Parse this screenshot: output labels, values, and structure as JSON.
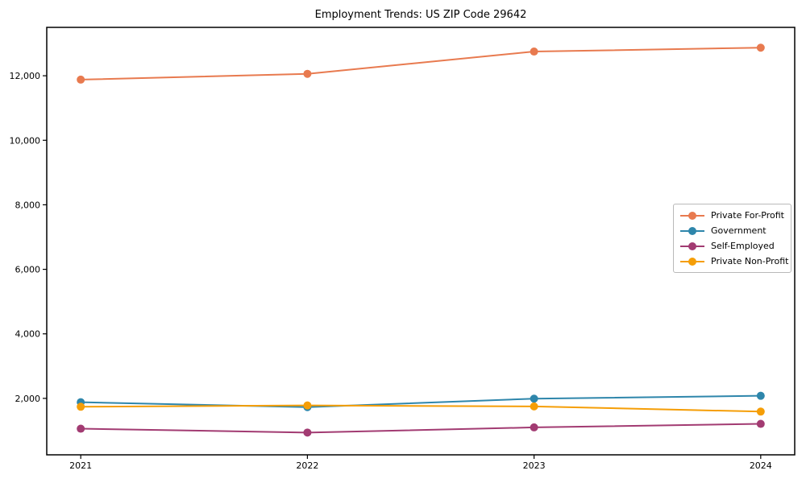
{
  "chart_data": {
    "type": "line",
    "title": "Employment Trends: US ZIP Code 29642",
    "categories": [
      "2021",
      "2022",
      "2023",
      "2024"
    ],
    "series": [
      {
        "name": "Private For-Profit",
        "color": "#e87a4f",
        "values": [
          11880,
          12060,
          12750,
          12870
        ]
      },
      {
        "name": "Government",
        "color": "#2e86ab",
        "values": [
          1880,
          1730,
          1990,
          2080
        ]
      },
      {
        "name": "Self-Employed",
        "color": "#a23b72",
        "values": [
          1060,
          940,
          1100,
          1210
        ]
      },
      {
        "name": "Private Non-Profit",
        "color": "#f59e07",
        "values": [
          1740,
          1780,
          1750,
          1590
        ]
      }
    ],
    "xlabel": "",
    "ylabel": "",
    "yticks": [
      2000,
      4000,
      6000,
      8000,
      10000,
      12000
    ],
    "ytick_labels": [
      "2,000",
      "4,000",
      "6,000",
      "8,000",
      "10,000",
      "12,000"
    ],
    "ylim": [
      250,
      13500
    ],
    "grid": false,
    "legend_position": "center-right",
    "marker": "circle",
    "line_width": 2,
    "marker_radius": 5,
    "background_color": "#ffffff",
    "axis_color": "#000000"
  }
}
